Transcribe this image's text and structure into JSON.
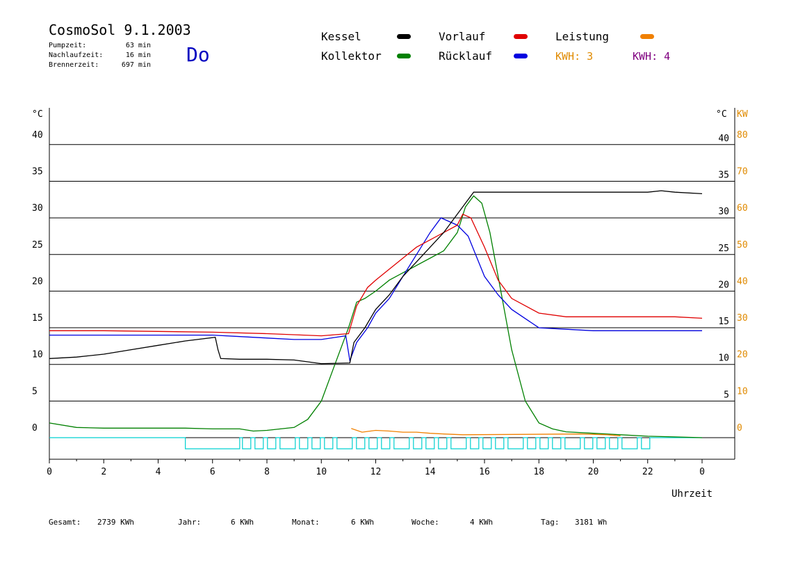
{
  "header": {
    "title": "CosmoSol 9.1.2003",
    "day": "Do",
    "stats": [
      {
        "label": "Pumpzeit:",
        "value": "63 min"
      },
      {
        "label": "Nachlaufzeit:",
        "value": "16 min"
      },
      {
        "label": "Brennerzeit:",
        "value": "697 min"
      }
    ]
  },
  "legend": {
    "items": [
      {
        "label": "Kessel",
        "color": "#000000"
      },
      {
        "label": "Vorlauf",
        "color": "#e00000"
      },
      {
        "label": "Leistung",
        "color": "#f08000"
      },
      {
        "label": "Kollektor",
        "color": "#008000"
      },
      {
        "label": "Rücklauf",
        "color": "#0000e0"
      }
    ],
    "kwh": [
      {
        "label": "KWH: 3",
        "color": "#e08a00"
      },
      {
        "label": "KWH: 4",
        "color": "#800080"
      }
    ]
  },
  "axes": {
    "left_unit": "°C",
    "right_unit": "°C",
    "right_unit2": "KW",
    "xlabel": "Uhrzeit",
    "xticks": [
      "0",
      "2",
      "4",
      "6",
      "8",
      "10",
      "12",
      "14",
      "16",
      "18",
      "20",
      "22",
      "0"
    ],
    "left_ticks": [
      "0",
      "5",
      "10",
      "15",
      "20",
      "25",
      "30",
      "35",
      "40"
    ],
    "right_ticks": [
      "5",
      "10",
      "15",
      "20",
      "25",
      "30",
      "35",
      "40"
    ],
    "kw_ticks": [
      "0",
      "10",
      "20",
      "30",
      "40",
      "50",
      "60",
      "70",
      "80"
    ]
  },
  "footer": [
    {
      "label": "Gesamt:",
      "value": "2739 KWh"
    },
    {
      "label": "Jahr:",
      "value": "6 KWh"
    },
    {
      "label": "Monat:",
      "value": "6 KWh"
    },
    {
      "label": "Woche:",
      "value": "4 KWh"
    },
    {
      "label": "Tag:",
      "value": "3181 Wh"
    }
  ],
  "colors": {
    "kessel": "#000000",
    "vorlauf": "#e00000",
    "ruecklauf": "#0000e0",
    "kollektor": "#008000",
    "leistung": "#f08000",
    "pump": "#00d0d0",
    "kwh4": "#800080",
    "kw_axis": "#e08a00",
    "grid": "#000000"
  },
  "chart_data": {
    "type": "line",
    "xlabel": "Uhrzeit",
    "ylabel": "°C",
    "xlim": [
      0,
      24
    ],
    "ylim": [
      0,
      40
    ],
    "y2label": "KW",
    "y2lim": [
      0,
      80
    ],
    "grid": true,
    "series": [
      {
        "name": "Kessel",
        "unit": "°C",
        "points": [
          [
            0,
            10.8
          ],
          [
            1,
            11.0
          ],
          [
            2,
            11.4
          ],
          [
            3,
            12.0
          ],
          [
            4,
            12.6
          ],
          [
            5,
            13.2
          ],
          [
            6.1,
            13.7
          ],
          [
            6.2,
            12.0
          ],
          [
            6.3,
            10.8
          ],
          [
            7,
            10.7
          ],
          [
            8,
            10.7
          ],
          [
            9,
            10.6
          ],
          [
            10,
            10.1
          ],
          [
            11.05,
            10.2
          ],
          [
            11.2,
            13.0
          ],
          [
            11.6,
            15.0
          ],
          [
            12.0,
            17.5
          ],
          [
            12.5,
            19.5
          ],
          [
            13.0,
            22.0
          ],
          [
            13.5,
            24.0
          ],
          [
            14.0,
            26.0
          ],
          [
            14.5,
            28.0
          ],
          [
            15.0,
            30.5
          ],
          [
            15.3,
            32.0
          ],
          [
            15.6,
            33.5
          ],
          [
            16,
            33.5
          ],
          [
            18,
            33.5
          ],
          [
            20,
            33.5
          ],
          [
            22,
            33.5
          ],
          [
            22.5,
            33.7
          ],
          [
            23,
            33.5
          ],
          [
            24,
            33.3
          ]
        ]
      },
      {
        "name": "Vorlauf",
        "unit": "°C",
        "points": [
          [
            0,
            14.6
          ],
          [
            2,
            14.6
          ],
          [
            4,
            14.5
          ],
          [
            6,
            14.4
          ],
          [
            8,
            14.2
          ],
          [
            10,
            13.9
          ],
          [
            11,
            14.2
          ],
          [
            11.3,
            18.0
          ],
          [
            11.7,
            20.5
          ],
          [
            12.0,
            21.5
          ],
          [
            12.5,
            23.0
          ],
          [
            13.0,
            24.5
          ],
          [
            13.5,
            26.0
          ],
          [
            14.0,
            27.0
          ],
          [
            14.5,
            28.0
          ],
          [
            15.0,
            29.0
          ],
          [
            15.2,
            30.5
          ],
          [
            15.5,
            30.0
          ],
          [
            16.0,
            26.0
          ],
          [
            16.5,
            21.5
          ],
          [
            17.0,
            19.0
          ],
          [
            18,
            17.0
          ],
          [
            19,
            16.5
          ],
          [
            20,
            16.5
          ],
          [
            21,
            16.5
          ],
          [
            22,
            16.5
          ],
          [
            23,
            16.5
          ],
          [
            24,
            16.3
          ]
        ]
      },
      {
        "name": "Rücklauf",
        "unit": "°C",
        "points": [
          [
            0,
            14.0
          ],
          [
            2,
            14.0
          ],
          [
            4,
            14.0
          ],
          [
            5,
            14.0
          ],
          [
            6,
            14.0
          ],
          [
            7,
            13.8
          ],
          [
            8,
            13.6
          ],
          [
            9,
            13.4
          ],
          [
            10,
            13.4
          ],
          [
            10.9,
            13.9
          ],
          [
            11.05,
            10.5
          ],
          [
            11.3,
            13.0
          ],
          [
            11.7,
            15.0
          ],
          [
            12.0,
            17.0
          ],
          [
            12.5,
            19.0
          ],
          [
            13.0,
            22.0
          ],
          [
            13.5,
            25.0
          ],
          [
            14.0,
            28.0
          ],
          [
            14.4,
            30.0
          ],
          [
            15.0,
            29.0
          ],
          [
            15.4,
            27.5
          ],
          [
            16.0,
            22.0
          ],
          [
            16.5,
            19.5
          ],
          [
            17.0,
            17.5
          ],
          [
            18,
            15.0
          ],
          [
            19,
            14.8
          ],
          [
            20,
            14.6
          ],
          [
            21,
            14.6
          ],
          [
            22,
            14.6
          ],
          [
            23,
            14.6
          ],
          [
            24,
            14.6
          ]
        ]
      },
      {
        "name": "Kollektor",
        "unit": "°C",
        "points": [
          [
            0,
            2.0
          ],
          [
            1,
            1.4
          ],
          [
            2,
            1.3
          ],
          [
            3,
            1.3
          ],
          [
            4,
            1.3
          ],
          [
            5,
            1.3
          ],
          [
            6,
            1.2
          ],
          [
            7,
            1.2
          ],
          [
            7.5,
            0.9
          ],
          [
            8,
            1.0
          ],
          [
            9,
            1.4
          ],
          [
            9.5,
            2.5
          ],
          [
            10,
            5.0
          ],
          [
            10.5,
            10.0
          ],
          [
            11.0,
            15.0
          ],
          [
            11.3,
            18.5
          ],
          [
            11.6,
            19.0
          ],
          [
            12.0,
            20.0
          ],
          [
            12.5,
            21.5
          ],
          [
            13.0,
            22.5
          ],
          [
            13.5,
            23.5
          ],
          [
            14.0,
            24.5
          ],
          [
            14.5,
            25.5
          ],
          [
            15.0,
            28.0
          ],
          [
            15.3,
            31.5
          ],
          [
            15.6,
            33.0
          ],
          [
            15.9,
            32.0
          ],
          [
            16.2,
            28.0
          ],
          [
            16.5,
            22.0
          ],
          [
            17.0,
            12.0
          ],
          [
            17.5,
            5.0
          ],
          [
            18,
            2.0
          ],
          [
            18.5,
            1.2
          ],
          [
            19,
            0.8
          ],
          [
            20,
            0.6
          ],
          [
            21,
            0.4
          ],
          [
            22,
            0.2
          ],
          [
            23,
            0.1
          ],
          [
            24,
            0.0
          ]
        ]
      },
      {
        "name": "Leistung",
        "unit": "KW",
        "points": [
          [
            11.1,
            2.5
          ],
          [
            11.5,
            1.5
          ],
          [
            12,
            2.0
          ],
          [
            12.5,
            1.8
          ],
          [
            13,
            1.5
          ],
          [
            13.5,
            1.5
          ],
          [
            14,
            1.2
          ],
          [
            14.5,
            1.0
          ],
          [
            15.2,
            0.8
          ],
          [
            19.5,
            1.0
          ],
          [
            20.5,
            0.8
          ],
          [
            21,
            0.5
          ]
        ]
      }
    ],
    "pump_cycles": {
      "start": 5.0,
      "end": 22.0
    }
  }
}
